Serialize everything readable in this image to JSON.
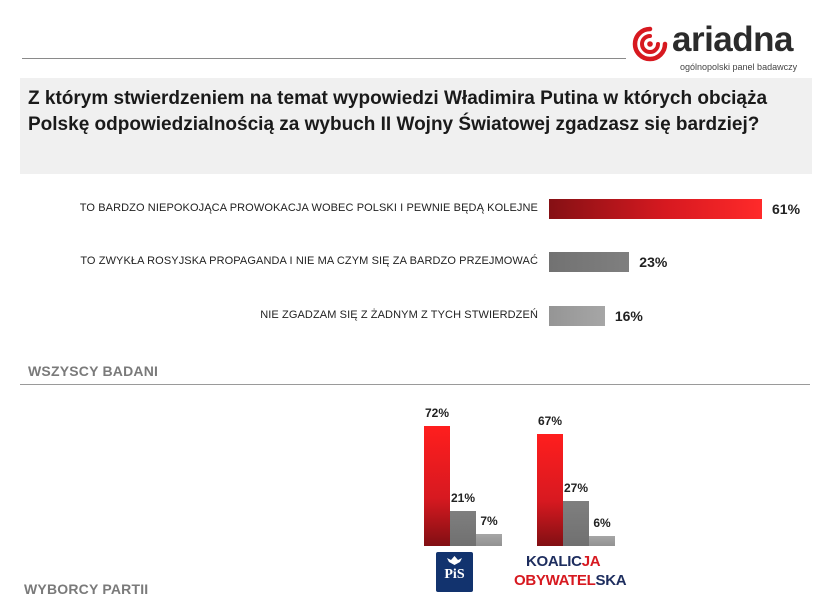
{
  "brand": {
    "name": "ariadna",
    "tagline": "ogólnopolski panel badawczy",
    "accent": "#d71920"
  },
  "question": "Z którym stwierdzeniem na temat wypowiedzi Władimira Putina w których obciąża Polskę odpowiedzialnością za wybuch II Wojny Światowej zgadzasz się bardziej?",
  "chart_data": [
    {
      "type": "bar",
      "orientation": "horizontal",
      "title": "WSZYSCY BADANI",
      "categories": [
        "TO BARDZO NIEPOKOJĄCA PROWOKACJA WOBEC POLSKI I PEWNIE BĘDĄ KOLEJNE",
        "TO ZWYKŁA ROSYJSKA PROPAGANDA I NIE MA CZYM SIĘ ZA BARDZO PRZEJMOWAĆ",
        "NIE ZGADZAM SIĘ Z ŻADNYM Z TYCH STWIERDZEŃ"
      ],
      "values": [
        61,
        23,
        16
      ],
      "value_labels": [
        "61%",
        "23%",
        "16%"
      ],
      "colors": [
        "#d71920",
        "#7f7f7f",
        "#a6a6a6"
      ],
      "xlim": [
        0,
        61
      ],
      "grid": false
    },
    {
      "type": "bar",
      "orientation": "vertical",
      "title": "WYBORCY PARTII",
      "categories": [
        "PiS",
        "KOALICJA OBYWATELSKA"
      ],
      "series": [
        {
          "values": [
            72,
            67
          ],
          "value_labels": [
            "72%",
            "67%"
          ],
          "color": "#d71920"
        },
        {
          "values": [
            21,
            27
          ],
          "value_labels": [
            "21%",
            "27%"
          ],
          "color": "#7f7f7f"
        },
        {
          "values": [
            7,
            6
          ],
          "value_labels": [
            "7%",
            "6%"
          ],
          "color": "#a6a6a6"
        }
      ],
      "ylim": [
        0,
        72
      ],
      "grid": false
    }
  ],
  "party_logos": {
    "pis": "PiS",
    "ko_line1_a": "KOALIC",
    "ko_line1_b": "JA",
    "ko_line2_a": "OBYWATEL",
    "ko_line2_b": "SKA"
  }
}
